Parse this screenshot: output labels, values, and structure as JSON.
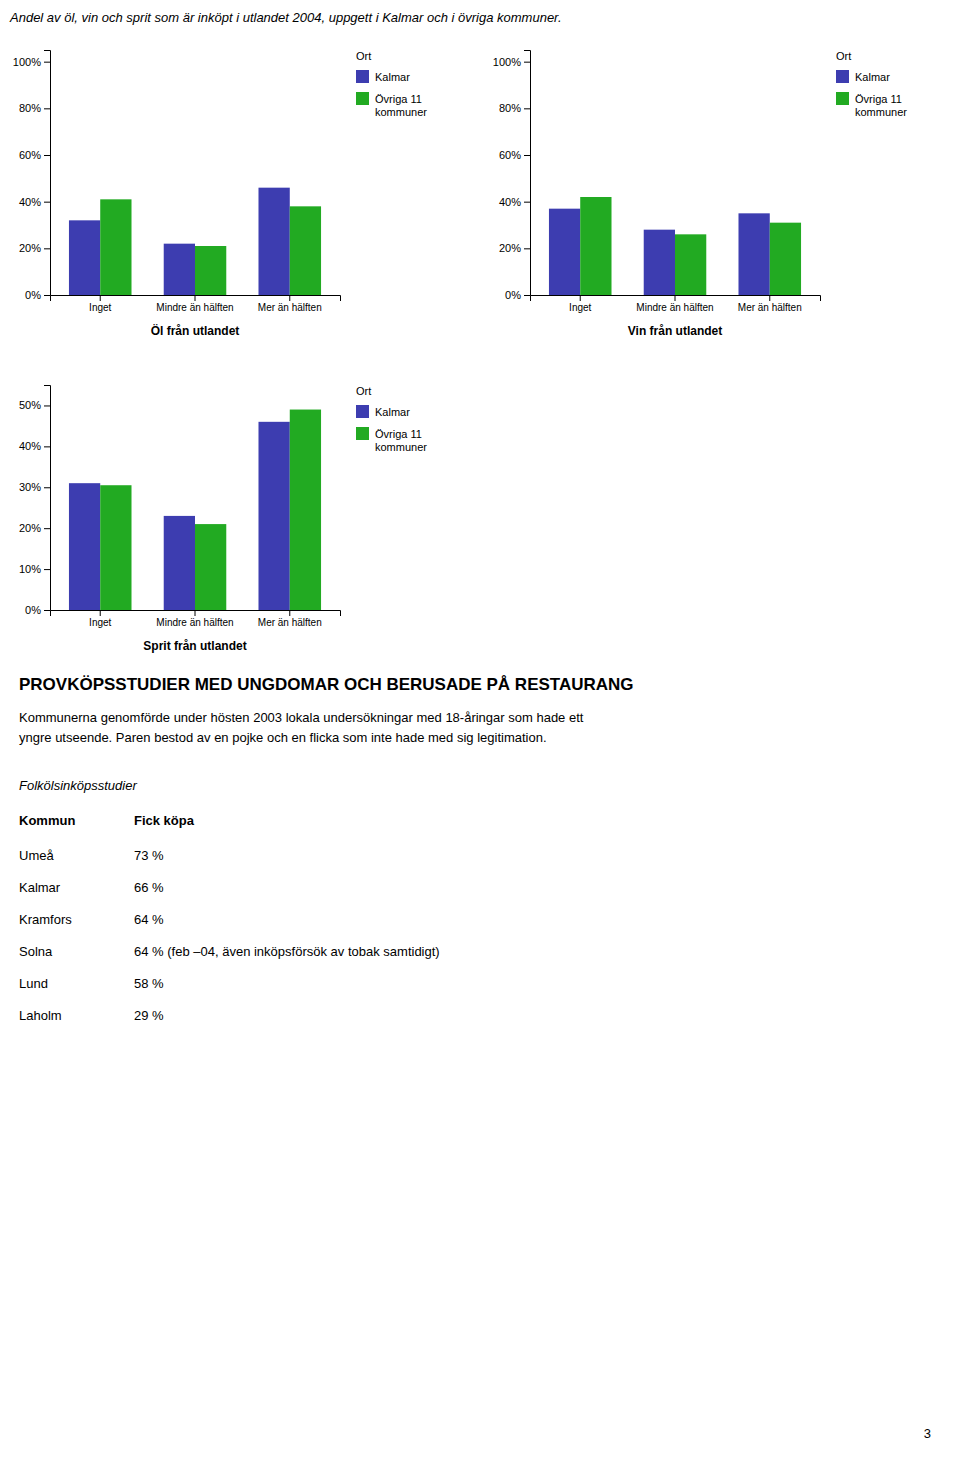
{
  "title": "Andel av öl, vin och sprit som är inköpt i utlandet 2004, uppgett i Kalmar och i övriga kommuner.",
  "chart_data": [
    {
      "type": "bar",
      "xlabel": "Öl från utlandet",
      "categories": [
        "Inget",
        "Mindre än hälften",
        "Mer än hälften"
      ],
      "series": [
        {
          "name": "Kalmar",
          "color": "#3d3db0",
          "values": [
            32,
            22,
            46
          ]
        },
        {
          "name": "Övriga 11\nkommuner",
          "color": "#22aa22",
          "values": [
            41,
            21,
            38
          ]
        }
      ],
      "ylim": [
        0,
        105
      ],
      "yticks": [
        {
          "value": 0,
          "label": "0%"
        },
        {
          "value": 20,
          "label": "20%"
        },
        {
          "value": 40,
          "label": "40%"
        },
        {
          "value": 60,
          "label": "60%"
        },
        {
          "value": 80,
          "label": "80%"
        },
        {
          "value": 100,
          "label": "100%"
        }
      ],
      "grid": false,
      "legend": "right",
      "legend_title": "Ort"
    },
    {
      "type": "bar",
      "xlabel": "Vin från utlandet",
      "categories": [
        "Inget",
        "Mindre än hälften",
        "Mer än hälften"
      ],
      "series": [
        {
          "name": "Kalmar",
          "color": "#3d3db0",
          "values": [
            37,
            28,
            35
          ]
        },
        {
          "name": "Övriga 11\nkommuner",
          "color": "#22aa22",
          "values": [
            42,
            26,
            31
          ]
        }
      ],
      "ylim": [
        0,
        105
      ],
      "yticks": [
        {
          "value": 0,
          "label": "0%"
        },
        {
          "value": 20,
          "label": "20%"
        },
        {
          "value": 40,
          "label": "40%"
        },
        {
          "value": 60,
          "label": "60%"
        },
        {
          "value": 80,
          "label": "80%"
        },
        {
          "value": 100,
          "label": "100%"
        }
      ],
      "grid": false,
      "legend": "right",
      "legend_title": "Ort"
    },
    {
      "type": "bar",
      "xlabel": "Sprit från utlandet",
      "categories": [
        "Inget",
        "Mindre än hälften",
        "Mer än hälften"
      ],
      "series": [
        {
          "name": "Kalmar",
          "color": "#3d3db0",
          "values": [
            31,
            23,
            46
          ]
        },
        {
          "name": "Övriga 11\nkommuner",
          "color": "#22aa22",
          "values": [
            30.5,
            21,
            49
          ]
        }
      ],
      "ylim": [
        0,
        55
      ],
      "yticks": [
        {
          "value": 0,
          "label": "0%"
        },
        {
          "value": 10,
          "label": "10%"
        },
        {
          "value": 20,
          "label": "20%"
        },
        {
          "value": 30,
          "label": "30%"
        },
        {
          "value": 40,
          "label": "40%"
        },
        {
          "value": 50,
          "label": "50%"
        }
      ],
      "grid": false,
      "legend": "right",
      "legend_title": "Ort"
    }
  ],
  "page_text": {
    "section_title": "PROVKÖPSSTUDIER MED UNGDOMAR OCH BERUSADE PÅ RESTAURANG",
    "section_body": [
      "Kommunerna genomförde under hösten 2003 lokala undersökningar med 18-åringar som hade ett",
      "yngre utseende. Paren bestod av en pojke och en flicka som inte hade med sig legitimation."
    ],
    "italic_header": "Folkölsinköpsstudier",
    "table": {
      "headers": [
        "Kommun",
        "Fick köpa"
      ],
      "rows": [
        [
          "Umeå",
          "73 %"
        ],
        [
          "Kalmar",
          "66 %"
        ],
        [
          "Kramfors",
          "64 %"
        ],
        [
          "Solna",
          "64 % (feb –04, även inköpsförsök av tobak samtidigt)"
        ],
        [
          "Lund",
          "58 %"
        ],
        [
          "Laholm",
          "29 %"
        ]
      ]
    },
    "page_number": "3"
  }
}
